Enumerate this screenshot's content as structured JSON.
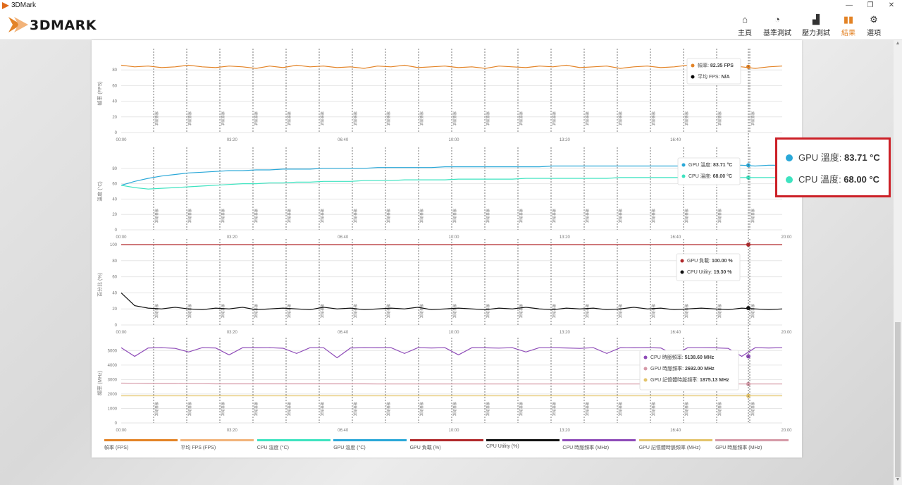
{
  "window": {
    "title": "3DMark",
    "minimize": "—",
    "restore": "❐",
    "close": "✕"
  },
  "app": {
    "logo_text": "3DMARK"
  },
  "nav": [
    {
      "label": "主頁",
      "icon": "home-icon",
      "glyph": "⌂"
    },
    {
      "label": "基準測試",
      "icon": "gauge-icon",
      "glyph": "◔"
    },
    {
      "label": "壓力測試",
      "icon": "bar-chart-icon",
      "glyph": "▟"
    },
    {
      "label": "結果",
      "icon": "results-icon",
      "glyph": "▮▮",
      "active": true
    },
    {
      "label": "選項",
      "icon": "gear-icon",
      "glyph": "⚙"
    }
  ],
  "colors": {
    "accent": "#e38326",
    "fps": "#e38326",
    "avg_fps": "#f2b37a",
    "cpu_temp": "#3ee3c0",
    "gpu_temp": "#2aa8d8",
    "gpu_load": "#b0282a",
    "cpu_util": "#111111",
    "cpu_clock": "#8e4bb8",
    "gpu_mem_clock": "#e3c46b",
    "gpu_clock": "#d69aa8",
    "callout_border": "#cc2027"
  },
  "chart_data": [
    {
      "type": "line",
      "ylabel": "幀率 (FPS)",
      "ylim": [
        0,
        100
      ],
      "yticks": [
        0,
        20,
        40,
        60,
        80
      ],
      "x_labels": [
        "00:00",
        "03:20",
        "06:40",
        "10:00",
        "13:20",
        "16:40",
        "20:00"
      ],
      "event_label": "場景測試",
      "series": [
        {
          "name": "幀率",
          "values": [
            86,
            84,
            85,
            83,
            84,
            86,
            84,
            83,
            85,
            84,
            82,
            85,
            83,
            86,
            84,
            85,
            83,
            84,
            82,
            85,
            84,
            86,
            83,
            84,
            85,
            83,
            84,
            82,
            85,
            84,
            83,
            85,
            84,
            86,
            83,
            84,
            85,
            82,
            84,
            85,
            83,
            84,
            86,
            84,
            83,
            85,
            84,
            82,
            84,
            85
          ]
        }
      ],
      "tooltip": [
        {
          "label": "幀率",
          "value": "82.35 FPS"
        },
        {
          "label": "平均 FPS",
          "value": "N/A"
        }
      ]
    },
    {
      "type": "line",
      "ylabel": "溫度 (°C)",
      "ylim": [
        0,
        100
      ],
      "yticks": [
        0,
        20,
        40,
        60,
        80
      ],
      "x_labels": [
        "00:00",
        "03:20",
        "06:40",
        "10:00",
        "13:20",
        "16:40",
        "20:00"
      ],
      "event_label": "場景測試",
      "series": [
        {
          "name": "GPU 溫度",
          "values": [
            58,
            63,
            67,
            70,
            72,
            74,
            75,
            76,
            77,
            77,
            78,
            78,
            79,
            79,
            79,
            80,
            80,
            80,
            80,
            81,
            81,
            81,
            81,
            81,
            82,
            82,
            82,
            82,
            82,
            82,
            82,
            82,
            83,
            83,
            83,
            83,
            83,
            83,
            83,
            83,
            83,
            83,
            83,
            83,
            83,
            84,
            84,
            83,
            84,
            84
          ]
        },
        {
          "name": "CPU 溫度",
          "values": [
            58,
            55,
            53,
            54,
            55,
            56,
            57,
            58,
            59,
            60,
            60,
            61,
            61,
            62,
            62,
            63,
            63,
            63,
            64,
            64,
            64,
            65,
            65,
            65,
            65,
            66,
            66,
            66,
            66,
            66,
            67,
            67,
            67,
            67,
            67,
            67,
            67,
            68,
            68,
            68,
            68,
            68,
            68,
            68,
            68,
            68,
            68,
            68,
            68,
            68
          ]
        }
      ],
      "tooltip": [
        {
          "label": "GPU 溫度",
          "value": "83.71 °C"
        },
        {
          "label": "CPU 溫度",
          "value": "68.00 °C"
        }
      ]
    },
    {
      "type": "line",
      "ylabel": "百分比 (%)",
      "ylim": [
        0,
        100
      ],
      "yticks": [
        0,
        20,
        40,
        60,
        80,
        100
      ],
      "x_labels": [
        "00:00",
        "03:20",
        "06:40",
        "10:00",
        "13:20",
        "16:40",
        "20:00"
      ],
      "event_label": "場景測試",
      "series": [
        {
          "name": "GPU 負載",
          "values": [
            100,
            100,
            100,
            100,
            100,
            100,
            100,
            100,
            100,
            100,
            100,
            100,
            100,
            100,
            100,
            100,
            100,
            100,
            100,
            100,
            100,
            100,
            100,
            100,
            100,
            100,
            100,
            100,
            100,
            100,
            100,
            100,
            100,
            100,
            100,
            100,
            100,
            100,
            100,
            100,
            100,
            100,
            100,
            100,
            100,
            100,
            100,
            100,
            100,
            100
          ]
        },
        {
          "name": "CPU Utility",
          "values": [
            40,
            24,
            21,
            20,
            22,
            20,
            19,
            21,
            20,
            22,
            19,
            20,
            21,
            20,
            19,
            22,
            20,
            21,
            19,
            20,
            21,
            20,
            22,
            19,
            20,
            21,
            20,
            19,
            21,
            20,
            22,
            20,
            19,
            21,
            20,
            21,
            19,
            20,
            22,
            20,
            21,
            19,
            20,
            21,
            20,
            19,
            21,
            20,
            19,
            20
          ]
        }
      ],
      "tooltip": [
        {
          "label": "GPU 負載",
          "value": "100.00 %"
        },
        {
          "label": "CPU Utility",
          "value": "19.30 %"
        }
      ]
    },
    {
      "type": "line",
      "ylabel": "頻率 (MHz)",
      "ylim": [
        0,
        5500
      ],
      "yticks": [
        0,
        1000,
        2000,
        3000,
        4000,
        5000
      ],
      "x_labels": [
        "00:00",
        "03:20",
        "06:40",
        "10:00",
        "13:20",
        "16:40",
        "20:00"
      ],
      "event_label": "場景測試",
      "series": [
        {
          "name": "CPU 時脈頻率",
          "values": [
            5200,
            4600,
            5180,
            5200,
            5150,
            4900,
            5200,
            5180,
            4700,
            5200,
            5190,
            5200,
            5160,
            4800,
            5200,
            5200,
            4500,
            5180,
            5200,
            5190,
            5200,
            4800,
            5200,
            5180,
            5200,
            4700,
            5200,
            5190,
            5170,
            5200,
            4900,
            5200,
            5200,
            5180,
            5150,
            5200,
            4800,
            5200,
            5190,
            5200,
            5180,
            4700,
            5200,
            5200,
            5190,
            5150,
            4600,
            5200,
            5180,
            5200
          ]
        },
        {
          "name": "GPU 時脈頻率",
          "values": [
            2750,
            2740,
            2730,
            2720,
            2720,
            2710,
            2710,
            2700,
            2700,
            2700,
            2700,
            2700,
            2700,
            2700,
            2700,
            2700,
            2700,
            2700,
            2700,
            2690,
            2690,
            2690,
            2690,
            2690,
            2690,
            2690,
            2690,
            2690,
            2690,
            2690,
            2690,
            2690,
            2690,
            2690,
            2690,
            2690,
            2690,
            2690,
            2690,
            2690,
            2690,
            2690,
            2690,
            2690,
            2692,
            2692,
            2692,
            2692,
            2692,
            2692
          ]
        },
        {
          "name": "GPU 記憶體時脈頻率",
          "values": [
            1875,
            1875,
            1875,
            1875,
            1875,
            1875,
            1875,
            1875,
            1875,
            1875,
            1875,
            1875,
            1875,
            1875,
            1875,
            1875,
            1875,
            1875,
            1875,
            1875,
            1875,
            1875,
            1875,
            1875,
            1875,
            1875,
            1875,
            1875,
            1875,
            1875,
            1875,
            1875,
            1875,
            1875,
            1875,
            1875,
            1875,
            1875,
            1875,
            1875,
            1875,
            1875,
            1875,
            1875,
            1875,
            1875,
            1875,
            1875,
            1875,
            1875
          ]
        }
      ],
      "tooltip": [
        {
          "label": "CPU 時脈頻率",
          "value": "5138.60 MHz"
        },
        {
          "label": "GPU 時脈頻率",
          "value": "2692.00 MHz"
        },
        {
          "label": "GPU 記憶體時脈頻率",
          "value": "1875.13 MHz"
        }
      ]
    }
  ],
  "legend": [
    "幀率 (FPS)",
    "平均 FPS (FPS)",
    "CPU 溫度 (°C)",
    "GPU 溫度 (°C)",
    "GPU 負載 (%)",
    "CPU Utility (%)",
    "CPU 時脈頻率 (MHz)",
    "GPU 記憶體時脈頻率 (MHz)",
    "GPU 時脈頻率 (MHz)"
  ],
  "callout": [
    {
      "label": "GPU 溫度",
      "value": "83.71 °C"
    },
    {
      "label": "CPU 溫度",
      "value": "68.00 °C"
    }
  ]
}
